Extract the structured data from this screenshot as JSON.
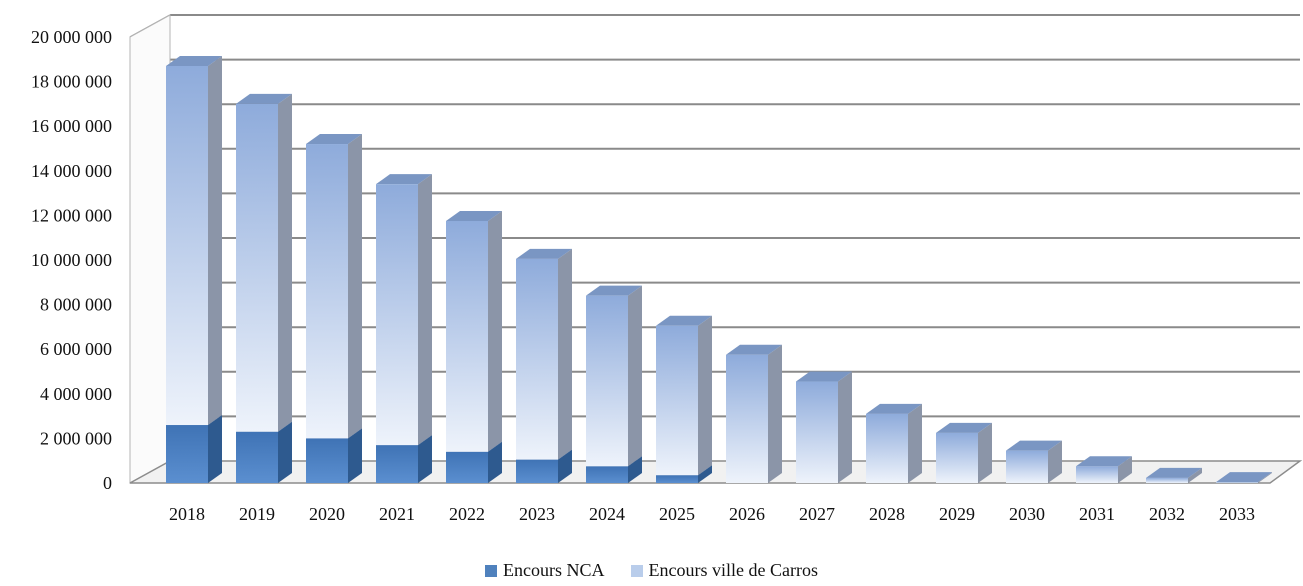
{
  "chart_data": {
    "type": "bar",
    "stacked": true,
    "three_d": true,
    "categories": [
      "2018",
      "2019",
      "2020",
      "2021",
      "2022",
      "2023",
      "2024",
      "2025",
      "2026",
      "2027",
      "2028",
      "2029",
      "2030",
      "2031",
      "2032",
      "2033"
    ],
    "series": [
      {
        "name": "Encours NCA",
        "color": "#4f81bd",
        "values": [
          2600000,
          2300000,
          2000000,
          1700000,
          1400000,
          1050000,
          750000,
          350000,
          0,
          0,
          0,
          0,
          0,
          0,
          0,
          0
        ]
      },
      {
        "name": "Encours ville de Carros",
        "color": "#a7bfe4",
        "values": [
          16100000,
          14700000,
          13200000,
          11700000,
          10350000,
          9000000,
          7650000,
          6700000,
          5750000,
          4550000,
          3100000,
          2250000,
          1450000,
          750000,
          230000,
          40000
        ]
      }
    ],
    "y_ticks": [
      "0",
      "2 000 000",
      "4 000 000",
      "6 000 000",
      "8 000 000",
      "10 000 000",
      "12 000 000",
      "14 000 000",
      "16 000 000",
      "18 000 000",
      "20 000 000"
    ],
    "ylim": [
      0,
      20000000
    ],
    "grid": true,
    "legend_position": "bottom"
  }
}
